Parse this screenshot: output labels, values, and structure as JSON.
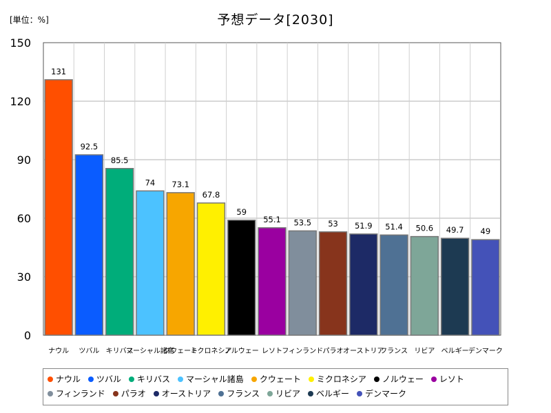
{
  "unit_label": "[単位：%]",
  "chart_data": {
    "type": "bar",
    "title": "予想データ[2030]",
    "xlabel": "",
    "ylabel": "",
    "ylim": [
      0,
      150
    ],
    "yticks": [
      0,
      30,
      60,
      90,
      120,
      150
    ],
    "grid": true,
    "legend_position": "bottom",
    "categories": [
      "ナウル",
      "ツバル",
      "キリバス",
      "マーシャル諸島",
      "クウェート",
      "ミクロネシア",
      "ノルウェー",
      "レソト",
      "フィンランド",
      "パラオ",
      "オーストリア",
      "フランス",
      "リビア",
      "ベルギー",
      "デンマーク"
    ],
    "values": [
      131,
      92.5,
      85.5,
      74,
      73.1,
      67.8,
      59,
      55.1,
      53.5,
      53,
      51.9,
      51.4,
      50.6,
      49.7,
      49
    ],
    "value_labels": [
      "131",
      "92.5",
      "85.5",
      "74",
      "73.1",
      "67.8",
      "59",
      "55.1",
      "53.5",
      "53",
      "51.9",
      "51.4",
      "50.6",
      "49.7",
      "49"
    ],
    "colors": [
      "#ff4f00",
      "#0a5cff",
      "#00ad7a",
      "#4cc2ff",
      "#f7a600",
      "#fff000",
      "#000000",
      "#9a00a0",
      "#808e9c",
      "#87341c",
      "#1d2a66",
      "#4f7194",
      "#7ea698",
      "#1d3a52",
      "#4452b8"
    ]
  }
}
